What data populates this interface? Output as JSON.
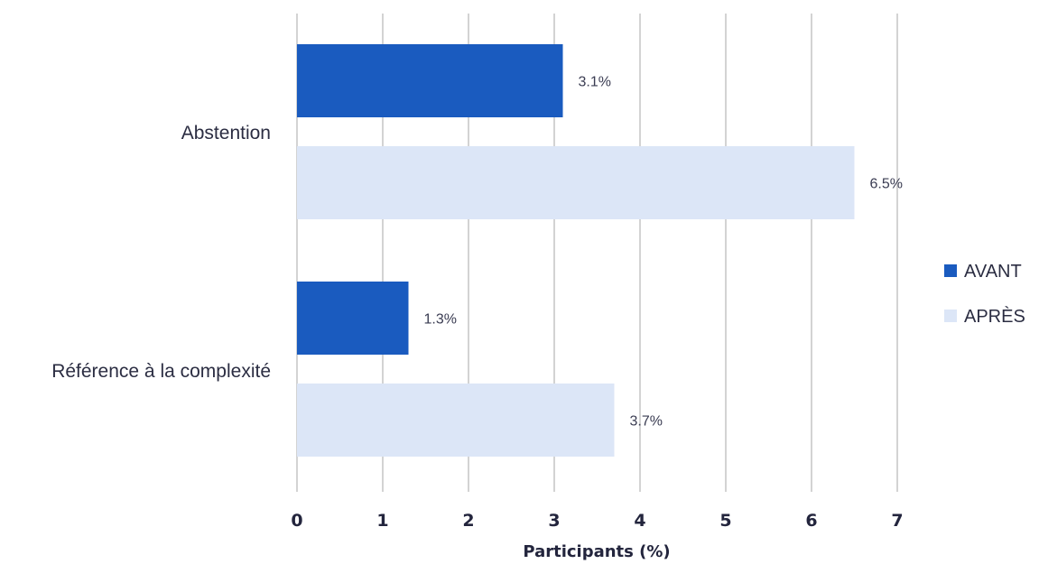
{
  "chart_data": {
    "type": "bar",
    "orientation": "horizontal",
    "categories": [
      "Abstention",
      "Référence à la complexité"
    ],
    "series": [
      {
        "name": "AVANT",
        "values": [
          3.1,
          1.3
        ],
        "labels": [
          "3.1%",
          "1.3%"
        ],
        "color": "#1a5bbf"
      },
      {
        "name": "APRÈS",
        "values": [
          6.5,
          3.7
        ],
        "labels": [
          "6.5%",
          "3.7%"
        ],
        "color": "#dce6f7"
      }
    ],
    "xlabel": "Participants (%)",
    "ylabel": "",
    "xlim": [
      0,
      7
    ],
    "xticks": [
      "0",
      "1",
      "2",
      "3",
      "4",
      "5",
      "6",
      "7"
    ],
    "grid": true,
    "legend": "right"
  }
}
